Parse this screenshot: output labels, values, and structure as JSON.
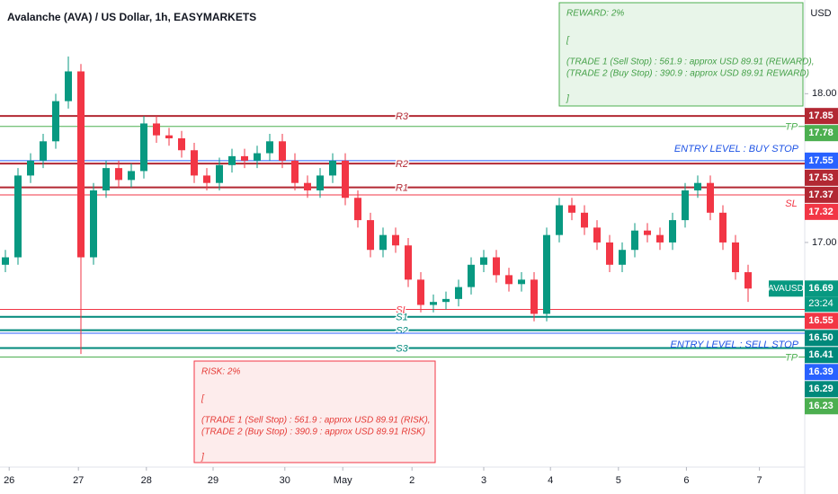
{
  "chart_data": {
    "type": "candlestick",
    "title": "Avalanche (AVA) / US Dollar, 1h, EASYMARKETS",
    "currency": "USD",
    "up_color": "#089981",
    "down_color": "#f23645",
    "ylim": [
      15.49,
      18.63
    ],
    "yticks": [
      {
        "value": 17,
        "label": "17.00"
      },
      {
        "value": 18,
        "label": "18.00"
      }
    ],
    "xticks": [
      {
        "value": 0.3,
        "label": "26"
      },
      {
        "value": 5.8,
        "label": "27"
      },
      {
        "value": 11.2,
        "label": "28"
      },
      {
        "value": 16.5,
        "label": "29"
      },
      {
        "value": 22.2,
        "label": "30"
      },
      {
        "value": 26.8,
        "label": "May"
      },
      {
        "value": 32.3,
        "label": "2"
      },
      {
        "value": 38.0,
        "label": "3"
      },
      {
        "value": 43.3,
        "label": "4"
      },
      {
        "value": 48.7,
        "label": "5"
      },
      {
        "value": 54.1,
        "label": "6"
      },
      {
        "value": 59.9,
        "label": "7"
      }
    ],
    "open": [
      16.85,
      16.9,
      17.45,
      17.55,
      17.68,
      17.95,
      18.15,
      16.9,
      17.35,
      17.5,
      17.42,
      17.48,
      17.8,
      17.72,
      17.7,
      17.62,
      17.45,
      17.4,
      17.52,
      17.58,
      17.55,
      17.6,
      17.68,
      17.55,
      17.4,
      17.35,
      17.45,
      17.55,
      17.3,
      17.15,
      16.95,
      17.05,
      16.98,
      16.75,
      16.58,
      16.6,
      16.62,
      16.7,
      16.85,
      16.9,
      16.78,
      16.72,
      16.75,
      16.52,
      17.05,
      17.25,
      17.2,
      17.1,
      17.0,
      16.85,
      16.95,
      17.08,
      17.05,
      17.0,
      17.15,
      17.35,
      17.4,
      17.2,
      17.0,
      16.8
    ],
    "high": [
      16.95,
      17.5,
      17.6,
      17.73,
      18.0,
      18.25,
      18.2,
      17.4,
      17.55,
      17.55,
      17.53,
      17.85,
      17.85,
      17.77,
      17.75,
      17.67,
      17.5,
      17.57,
      17.63,
      17.63,
      17.65,
      17.73,
      17.73,
      17.6,
      17.45,
      17.5,
      17.6,
      17.6,
      17.35,
      17.2,
      17.1,
      17.1,
      17.03,
      16.8,
      16.65,
      16.67,
      16.75,
      16.9,
      16.95,
      16.95,
      16.83,
      16.8,
      16.8,
      17.1,
      17.3,
      17.3,
      17.25,
      17.15,
      17.05,
      17.0,
      17.13,
      17.13,
      17.1,
      17.2,
      17.4,
      17.45,
      17.45,
      17.25,
      17.05,
      16.85
    ],
    "low": [
      16.8,
      16.85,
      17.4,
      17.5,
      17.63,
      17.9,
      16.25,
      16.85,
      17.3,
      17.37,
      17.37,
      17.43,
      17.67,
      17.65,
      17.57,
      17.4,
      17.35,
      17.35,
      17.47,
      17.5,
      17.5,
      17.55,
      17.5,
      17.35,
      17.3,
      17.3,
      17.4,
      17.25,
      17.1,
      16.9,
      16.9,
      16.93,
      16.7,
      16.53,
      16.53,
      16.55,
      16.57,
      16.65,
      16.8,
      16.73,
      16.67,
      16.67,
      16.47,
      16.47,
      17.0,
      17.15,
      17.05,
      16.95,
      16.8,
      16.8,
      16.9,
      17.0,
      16.95,
      16.95,
      17.1,
      17.3,
      17.15,
      16.95,
      16.75,
      16.6
    ],
    "close": [
      16.9,
      17.45,
      17.55,
      17.68,
      17.95,
      18.15,
      16.9,
      17.35,
      17.5,
      17.42,
      17.48,
      17.8,
      17.72,
      17.7,
      17.62,
      17.45,
      17.4,
      17.52,
      17.58,
      17.55,
      17.6,
      17.68,
      17.55,
      17.4,
      17.35,
      17.45,
      17.55,
      17.3,
      17.15,
      16.95,
      17.05,
      16.98,
      16.75,
      16.58,
      16.6,
      16.62,
      16.7,
      16.85,
      16.9,
      16.78,
      16.72,
      16.75,
      16.52,
      17.05,
      17.25,
      17.2,
      17.1,
      17.0,
      16.85,
      16.95,
      17.08,
      17.05,
      17.0,
      17.15,
      17.35,
      17.4,
      17.2,
      17.0,
      16.8,
      16.69
    ],
    "levels": [
      {
        "name": "R3",
        "value": 17.85,
        "color": "#b22833"
      },
      {
        "name": "TP",
        "value": 17.78,
        "color": "#4caf50"
      },
      {
        "value": 17.55,
        "color": "#2962ff"
      },
      {
        "name": "R2",
        "value": 17.53,
        "color": "#b22833"
      },
      {
        "name": "R1",
        "value": 17.37,
        "color": "#b22833"
      },
      {
        "name": "SL",
        "value": 17.32,
        "color": "#f23645"
      },
      {
        "name": "SL",
        "value": 16.55,
        "color": "#f23645"
      },
      {
        "name": "S1",
        "value": 16.5,
        "value_label": "16.50",
        "color": "#00897b"
      },
      {
        "name": "S2",
        "value": 16.41,
        "color": "#00897b"
      },
      {
        "value": 16.39,
        "color": "#2962ff"
      },
      {
        "name": "S3",
        "value": 16.29,
        "color": "#00897b"
      },
      {
        "name": "TP",
        "value": 16.23,
        "color": "#4caf50"
      }
    ],
    "annotations": [
      "ENTRY LEVEL : BUY STOP",
      "ENTRY LEVEL : SELL STOP"
    ],
    "symbol": "AVAUSD",
    "last_price": 16.69,
    "countdown": "23:24",
    "reward_box": [
      "REWARD: 2%",
      "[",
      "(TRADE 1 (Sell Stop) : 561.9 : approx USD 89.91 (REWARD),",
      "(TRADE 2 (Buy Stop) : 390.9 : approx USD 89.91 REWARD)",
      "]"
    ],
    "risk_box": [
      "RISK: 2%",
      "[",
      "(TRADE 1 (Sell Stop) : 561.9 : approx USD 89.91 (RISK),",
      "(TRADE 2 (Buy Stop) : 390.9 : approx USD 89.91 RISK)",
      "]"
    ]
  }
}
